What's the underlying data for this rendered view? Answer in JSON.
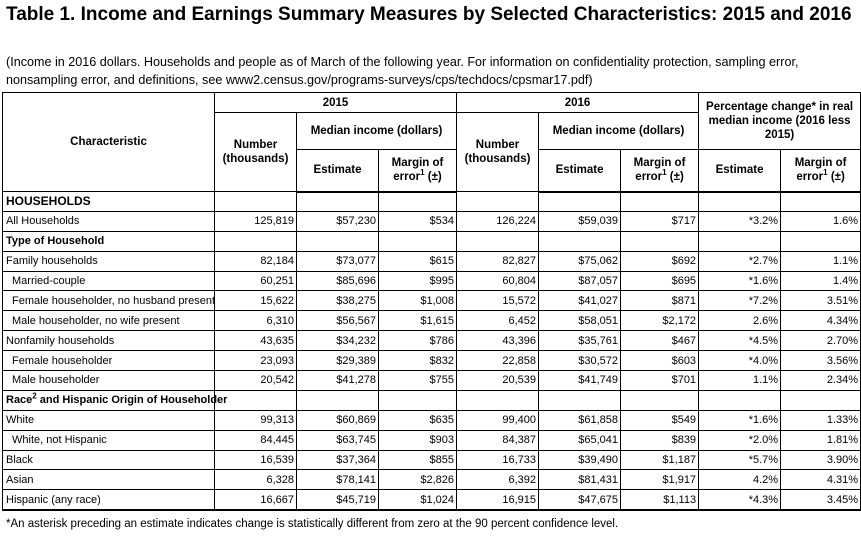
{
  "title": "Table 1. Income and Earnings Summary Measures by Selected Characteristics: 2015 and 2016",
  "subtitle": "(Income in 2016 dollars. Households and people as of March of the following year. For information on confidentiality protection, sampling error, nonsampling error, and definitions, see www2.census.gov/programs-surveys/cps/techdocs/cpsmar17.pdf)",
  "headers": {
    "characteristic": "Characteristic",
    "year_2015": "2015",
    "year_2016": "2016",
    "pct_change": "Percentage change* in real median income (2016 less 2015)",
    "number": "Number (thousands)",
    "median_income": "Median income (dollars)",
    "estimate": "Estimate",
    "margin": "Margin of error",
    "margin_sup": "1",
    "margin_suffix": " (±)"
  },
  "sections": {
    "households": "HOUSEHOLDS",
    "type_of_household": "Type of Household",
    "race_prefix": "Race",
    "race_sup": "2",
    "race_suffix": " and Hispanic Origin of Householder"
  },
  "rows": [
    {
      "label": "All Households",
      "n15": "125,819",
      "e15": "$57,230",
      "m15": "$534",
      "n16": "126,224",
      "e16": "$59,039",
      "m16": "$717",
      "pc": "*3.2%",
      "pm": "1.6%"
    },
    {
      "label": "Family households",
      "n15": "82,184",
      "e15": "$73,077",
      "m15": "$615",
      "n16": "82,827",
      "e16": "$75,062",
      "m16": "$692",
      "pc": "*2.7%",
      "pm": "1.1%"
    },
    {
      "label": "Married-couple",
      "n15": "60,251",
      "e15": "$85,696",
      "m15": "$995",
      "n16": "60,804",
      "e16": "$87,057",
      "m16": "$695",
      "pc": "*1.6%",
      "pm": "1.4%"
    },
    {
      "label": "Female householder, no husband present",
      "n15": "15,622",
      "e15": "$38,275",
      "m15": "$1,008",
      "n16": "15,572",
      "e16": "$41,027",
      "m16": "$871",
      "pc": "*7.2%",
      "pm": "3.51%"
    },
    {
      "label": "Male householder, no wife present",
      "n15": "6,310",
      "e15": "$56,567",
      "m15": "$1,615",
      "n16": "6,452",
      "e16": "$58,051",
      "m16": "$2,172",
      "pc": "2.6%",
      "pm": "4.34%"
    },
    {
      "label": "Nonfamily households",
      "n15": "43,635",
      "e15": "$34,232",
      "m15": "$786",
      "n16": "43,396",
      "e16": "$35,761",
      "m16": "$467",
      "pc": "*4.5%",
      "pm": "2.70%"
    },
    {
      "label": "Female householder",
      "n15": "23,093",
      "e15": "$29,389",
      "m15": "$832",
      "n16": "22,858",
      "e16": "$30,572",
      "m16": "$603",
      "pc": "*4.0%",
      "pm": "3.56%"
    },
    {
      "label": "Male householder",
      "n15": "20,542",
      "e15": "$41,278",
      "m15": "$755",
      "n16": "20,539",
      "e16": "$41,749",
      "m16": "$701",
      "pc": "1.1%",
      "pm": "2.34%"
    },
    {
      "label": "White",
      "n15": "99,313",
      "e15": "$60,869",
      "m15": "$635",
      "n16": "99,400",
      "e16": "$61,858",
      "m16": "$549",
      "pc": "*1.6%",
      "pm": "1.33%"
    },
    {
      "label": "White, not Hispanic",
      "n15": "84,445",
      "e15": "$63,745",
      "m15": "$903",
      "n16": "84,387",
      "e16": "$65,041",
      "m16": "$839",
      "pc": "*2.0%",
      "pm": "1.81%"
    },
    {
      "label": "Black",
      "n15": "16,539",
      "e15": "$37,364",
      "m15": "$855",
      "n16": "16,733",
      "e16": "$39,490",
      "m16": "$1,187",
      "pc": "*5.7%",
      "pm": "3.90%"
    },
    {
      "label": "Asian",
      "n15": "6,328",
      "e15": "$78,141",
      "m15": "$2,826",
      "n16": "6,392",
      "e16": "$81,431",
      "m16": "$1,917",
      "pc": "4.2%",
      "pm": "4.31%"
    },
    {
      "label": "Hispanic (any race)",
      "n15": "16,667",
      "e15": "$45,719",
      "m15": "$1,024",
      "n16": "16,915",
      "e16": "$47,675",
      "m16": "$1,113",
      "pc": "*4.3%",
      "pm": "3.45%"
    }
  ],
  "footnote": "*An asterisk preceding an estimate indicates change is statistically different from zero at the 90 percent confidence level."
}
